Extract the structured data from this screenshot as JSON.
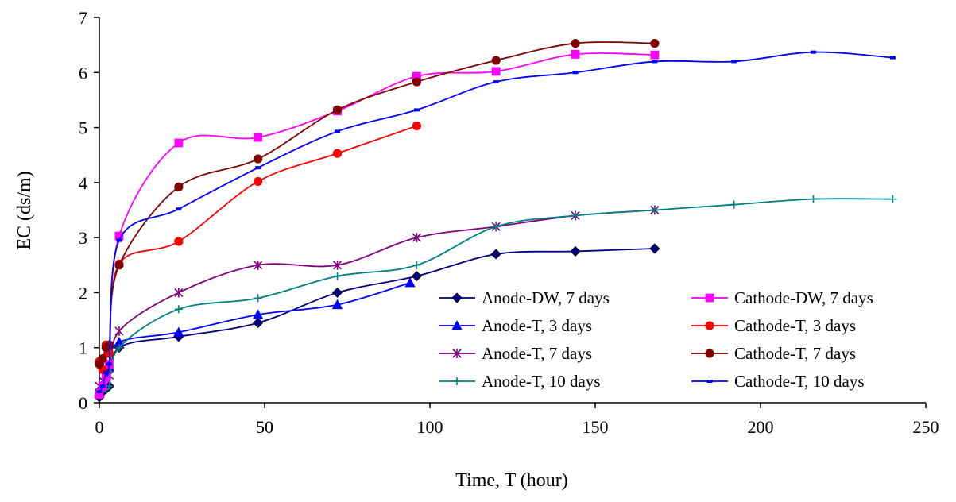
{
  "chart_data": {
    "type": "line",
    "title": "",
    "xlabel": "Time, T (hour)",
    "ylabel": "EC (ds/m)",
    "xlim": [
      0,
      250
    ],
    "ylim": [
      0,
      7
    ],
    "xticks": [
      0,
      50,
      100,
      150,
      200,
      250
    ],
    "yticks": [
      0,
      1,
      2,
      3,
      4,
      5,
      6,
      7
    ],
    "grid": false,
    "legend_position": "inside lower-right, two columns",
    "series": [
      {
        "name": "Anode-DW, 7 days",
        "color": "#000080",
        "marker": "diamond",
        "x": [
          0,
          1,
          2,
          3,
          6,
          24,
          48,
          72,
          96,
          120,
          144,
          168
        ],
        "y": [
          0.1,
          0.2,
          0.25,
          0.3,
          1.0,
          1.2,
          1.45,
          2.0,
          2.3,
          2.7,
          2.75,
          2.8
        ]
      },
      {
        "name": "Anode-T, 3 days",
        "color": "#0000FF",
        "marker": "triangle",
        "x": [
          0,
          1,
          2,
          3,
          6,
          24,
          48,
          72,
          94
        ],
        "y": [
          0.2,
          0.3,
          0.5,
          0.65,
          1.1,
          1.28,
          1.6,
          1.78,
          2.18
        ]
      },
      {
        "name": "Anode-T, 7 days",
        "color": "#800080",
        "marker": "asterisk",
        "x": [
          0,
          1,
          2,
          3,
          6,
          24,
          48,
          72,
          96,
          120,
          144,
          168
        ],
        "y": [
          0.3,
          0.4,
          0.45,
          0.5,
          1.3,
          2.0,
          2.5,
          2.5,
          3.0,
          3.2,
          3.4,
          3.5
        ]
      },
      {
        "name": "Anode-T, 10 days",
        "color": "#008080",
        "marker": "plus",
        "x": [
          0,
          1,
          2,
          3,
          6,
          24,
          48,
          72,
          96,
          120,
          144,
          168,
          192,
          216,
          240
        ],
        "y": [
          0.15,
          0.2,
          0.25,
          0.3,
          1.0,
          1.7,
          1.9,
          2.3,
          2.5,
          3.2,
          3.4,
          3.5,
          3.6,
          3.7,
          3.7
        ]
      },
      {
        "name": "Cathode-DW, 7 days",
        "color": "#FF00FF",
        "marker": "square",
        "x": [
          0,
          1,
          2,
          3,
          6,
          24,
          48,
          72,
          96,
          120,
          144,
          168
        ],
        "y": [
          0.15,
          0.3,
          0.45,
          0.7,
          3.03,
          4.72,
          4.82,
          5.3,
          5.93,
          6.02,
          6.33,
          6.32
        ]
      },
      {
        "name": "Cathode-T, 3 days",
        "color": "#FF0000",
        "marker": "circle",
        "x": [
          0,
          1,
          2,
          3,
          6,
          24,
          48,
          72,
          96
        ],
        "y": [
          0.75,
          0.6,
          1.05,
          0.9,
          2.52,
          2.93,
          4.02,
          4.53,
          5.03
        ]
      },
      {
        "name": "Cathode-T, 7 days",
        "color": "#800000",
        "marker": "circle",
        "x": [
          0,
          1,
          2,
          3,
          6,
          24,
          48,
          72,
          96,
          120,
          144,
          168
        ],
        "y": [
          0.7,
          0.8,
          1.0,
          1.05,
          2.5,
          3.92,
          4.43,
          5.32,
          5.83,
          6.22,
          6.53,
          6.53
        ]
      },
      {
        "name": "Cathode-T, 10 days",
        "color": "#0000FF",
        "marker": "dash",
        "x": [
          0,
          1,
          2,
          3,
          6,
          24,
          48,
          72,
          96,
          120,
          144,
          168,
          192,
          216,
          240
        ],
        "y": [
          0.2,
          0.3,
          0.55,
          0.7,
          2.95,
          3.52,
          4.27,
          4.93,
          5.32,
          5.83,
          6.0,
          6.2,
          6.2,
          6.37,
          6.27
        ]
      }
    ]
  }
}
